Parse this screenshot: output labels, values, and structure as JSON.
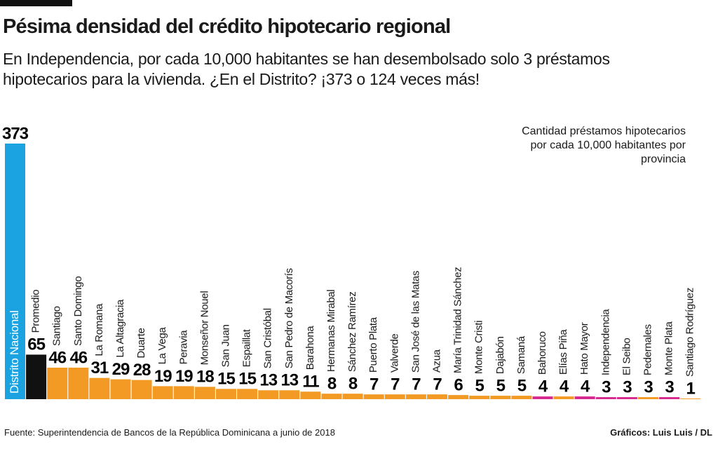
{
  "chart_data": {
    "type": "bar",
    "title": "Pésima densidad del crédito hipotecario regional",
    "subtitle": "En Independencia, por cada 10,000 habitantes se han desembolsado solo 3 préstamos hipotecarios para la vivienda. ¿En el Distrito? ¡373 o 124 veces más!",
    "note": "Cantidad préstamos hipotecarios por cada 10,000 habitantes por provincia",
    "source": "Fuente: Superintendencia de Bancos de la República Dominicana a junio de 2018",
    "credit": "Gráficos: Luis Luis / DL",
    "categories": [
      "Distrito Nacional",
      "Promedio",
      "Santiago",
      "Santo Domingo",
      "La Romana",
      "La Altagracia",
      "Duarte",
      "La Vega",
      "Peravia",
      "Monseñor Nouel",
      "San Juan",
      "Espaillat",
      "San Cristóbal",
      "San Pedro de Macorís",
      "Barahona",
      "Hermanas Mirabal",
      "Sánchez Ramírez",
      "Puerto Plata",
      "Valverde",
      "San José de las Matas",
      "Azua",
      "María Trinidad Sánchez",
      "Monte Cristi",
      "Dajabón",
      "Samaná",
      "Bahoruco",
      "Elías Piña",
      "Hato Mayor",
      "Independencia",
      "El Seibo",
      "Pedernales",
      "Monte Plata",
      "Santiago Rodríguez"
    ],
    "values": [
      373,
      65,
      46,
      46,
      31,
      29,
      28,
      19,
      19,
      18,
      15,
      15,
      13,
      13,
      11,
      8,
      8,
      7,
      7,
      7,
      7,
      6,
      5,
      5,
      5,
      4,
      4,
      4,
      3,
      3,
      3,
      3,
      1
    ],
    "colors": [
      "#1aa3e0",
      "#111111",
      "#f39a24",
      "#f39a24",
      "#f39a24",
      "#f39a24",
      "#f39a24",
      "#f39a24",
      "#f39a24",
      "#f39a24",
      "#f39a24",
      "#f39a24",
      "#f39a24",
      "#f39a24",
      "#f39a24",
      "#f39a24",
      "#f39a24",
      "#f39a24",
      "#f39a24",
      "#f39a24",
      "#f39a24",
      "#f39a24",
      "#f39a24",
      "#f39a24",
      "#f39a24",
      "#d6288f",
      "#f39a24",
      "#d6288f",
      "#d6288f",
      "#d6288f",
      "#f39a24",
      "#d6288f",
      "#f39a24"
    ]
  }
}
